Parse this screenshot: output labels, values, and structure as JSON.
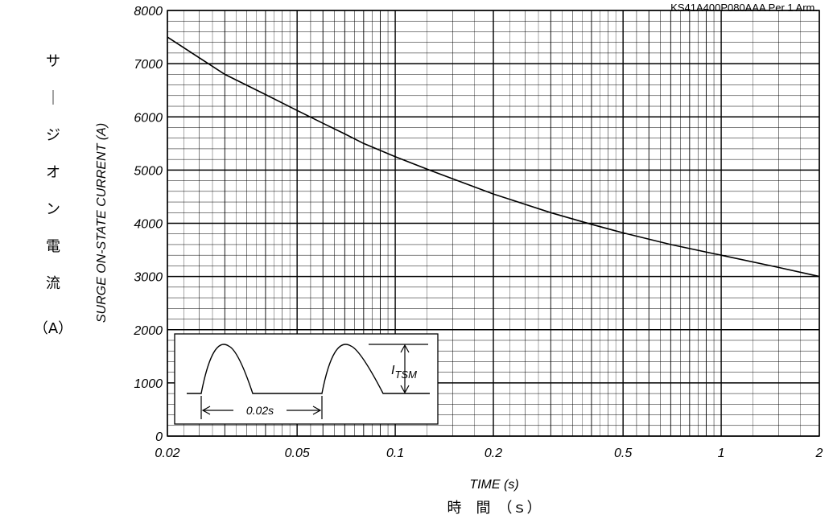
{
  "chart_data": {
    "type": "line",
    "part_number": "KS41A400P080AAA  Per 1 Arm.",
    "xlabel": "TIME (s)",
    "xlabel_jp": "時　間　（ｓ）",
    "ylabel": "SURGE ON-STATE CURRENT (A)",
    "ylabel_jp": [
      "サ",
      "｜",
      "ジ",
      "オ",
      "ン",
      "電",
      "流",
      "（A）"
    ],
    "x_scale": "log",
    "xlim": [
      0.02,
      2
    ],
    "ylim": [
      0,
      8000
    ],
    "x_ticks": [
      "0.02",
      "0.05",
      "0.1",
      "0.2",
      "0.5",
      "1",
      "2"
    ],
    "y_ticks": [
      "0",
      "1000",
      "2000",
      "3000",
      "4000",
      "5000",
      "6000",
      "7000",
      "8000"
    ],
    "grid": true,
    "series": [
      {
        "x": [
          0.02,
          0.03,
          0.04,
          0.05,
          0.06,
          0.07,
          0.08,
          0.1,
          0.13,
          0.2,
          0.3,
          0.4,
          0.5,
          0.7,
          1,
          1.5,
          2
        ],
        "y": [
          7500,
          6800,
          6420,
          6120,
          5880,
          5680,
          5500,
          5250,
          4980,
          4550,
          4200,
          3980,
          3820,
          3600,
          3400,
          3170,
          3000
        ]
      }
    ],
    "inset": {
      "label_interval": "0.02s",
      "label_peak": "I",
      "label_peak_sub": "TSM"
    }
  }
}
